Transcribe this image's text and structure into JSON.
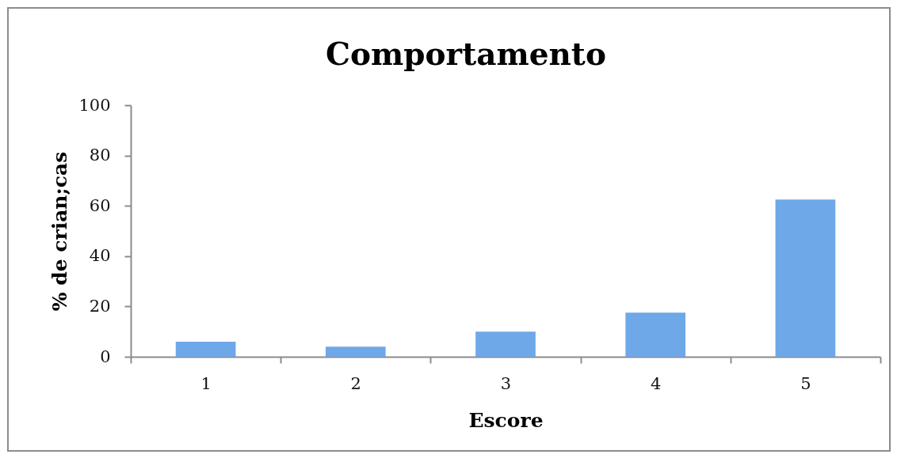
{
  "chart_data": {
    "type": "bar",
    "title": "Comportamento",
    "xlabel": "Escore",
    "ylabel": "% de crian;cas",
    "categories": [
      "1",
      "2",
      "3",
      "4",
      "5"
    ],
    "values": [
      6,
      4,
      10,
      17.5,
      62.5
    ],
    "color": "#6fa8e8",
    "ylim": [
      0,
      100
    ],
    "yticks": [
      0,
      20,
      40,
      60,
      80,
      100
    ]
  }
}
